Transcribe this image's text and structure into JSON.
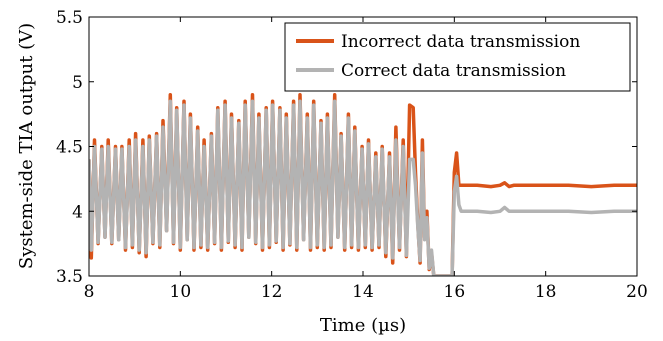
{
  "chart_data": {
    "type": "line",
    "xlabel": "Time (µs)",
    "ylabel": "System-side TIA output (V)",
    "xlim": [
      8,
      20
    ],
    "ylim": [
      3.5,
      5.5
    ],
    "xticks": [
      8,
      10,
      12,
      14,
      16,
      18,
      20
    ],
    "yticks": [
      3.5,
      4,
      4.5,
      5,
      5.5
    ],
    "xtick_labels": [
      "8",
      "10",
      "12",
      "14",
      "16",
      "18",
      "20"
    ],
    "ytick_labels": [
      "3.5",
      "4",
      "4.5",
      "5",
      "5.5"
    ],
    "legend_position": "top-right",
    "grid": false,
    "series": [
      {
        "name": "Incorrect data transmission",
        "color": "#d95319",
        "x": [
          8.0,
          8.05,
          8.12,
          8.2,
          8.28,
          8.35,
          8.42,
          8.5,
          8.58,
          8.65,
          8.72,
          8.8,
          8.88,
          8.95,
          9.02,
          9.1,
          9.18,
          9.25,
          9.32,
          9.4,
          9.48,
          9.55,
          9.62,
          9.7,
          9.78,
          9.85,
          9.92,
          10.0,
          10.08,
          10.15,
          10.22,
          10.3,
          10.38,
          10.45,
          10.52,
          10.6,
          10.68,
          10.75,
          10.82,
          10.9,
          10.98,
          11.05,
          11.12,
          11.2,
          11.28,
          11.35,
          11.42,
          11.5,
          11.58,
          11.65,
          11.72,
          11.8,
          11.88,
          11.95,
          12.02,
          12.1,
          12.18,
          12.25,
          12.32,
          12.4,
          12.48,
          12.55,
          12.62,
          12.7,
          12.78,
          12.85,
          12.92,
          13.0,
          13.08,
          13.15,
          13.22,
          13.3,
          13.38,
          13.45,
          13.52,
          13.6,
          13.68,
          13.75,
          13.82,
          13.9,
          13.98,
          14.05,
          14.12,
          14.2,
          14.28,
          14.35,
          14.42,
          14.5,
          14.58,
          14.65,
          14.72,
          14.8,
          14.88,
          14.95,
          15.02,
          15.1,
          15.15,
          15.2,
          15.25,
          15.3,
          15.35,
          15.4,
          15.45,
          15.5,
          15.55,
          15.6,
          15.65,
          15.7,
          15.8,
          15.9,
          15.95,
          16.0,
          16.05,
          16.1,
          16.15,
          16.2,
          16.3,
          16.5,
          16.8,
          17.0,
          17.1,
          17.2,
          17.3,
          17.5,
          17.8,
          18.0,
          18.5,
          19.0,
          19.5,
          19.8,
          20.0
        ],
        "y": [
          4.4,
          3.64,
          4.55,
          3.75,
          4.5,
          3.8,
          4.55,
          3.75,
          4.5,
          3.78,
          4.5,
          3.7,
          4.55,
          3.72,
          4.6,
          3.68,
          4.55,
          3.65,
          4.58,
          3.75,
          4.6,
          3.72,
          4.7,
          3.85,
          4.9,
          3.75,
          4.8,
          3.7,
          4.85,
          3.78,
          4.75,
          3.7,
          4.65,
          3.72,
          4.55,
          3.7,
          4.6,
          3.75,
          4.8,
          3.7,
          4.85,
          3.76,
          4.75,
          3.72,
          4.7,
          3.7,
          4.85,
          3.8,
          4.9,
          3.75,
          4.75,
          3.7,
          4.8,
          3.72,
          4.85,
          3.76,
          4.8,
          3.7,
          4.75,
          3.74,
          4.85,
          3.7,
          4.9,
          3.78,
          4.75,
          3.7,
          4.85,
          3.72,
          4.7,
          3.7,
          4.75,
          3.72,
          4.9,
          3.8,
          4.6,
          3.7,
          4.75,
          3.72,
          4.65,
          3.7,
          4.5,
          3.72,
          4.55,
          3.7,
          4.45,
          3.72,
          4.5,
          3.65,
          4.45,
          3.6,
          4.65,
          3.7,
          4.55,
          3.65,
          4.82,
          4.8,
          4.3,
          3.9,
          3.6,
          4.55,
          3.8,
          4.0,
          3.55,
          3.68,
          3.5,
          3.5,
          3.5,
          3.5,
          3.5,
          3.5,
          3.5,
          4.3,
          4.45,
          4.2,
          4.2,
          4.2,
          4.2,
          4.2,
          4.19,
          4.2,
          4.22,
          4.19,
          4.2,
          4.2,
          4.2,
          4.2,
          4.2,
          4.19,
          4.2,
          4.2,
          4.2
        ]
      },
      {
        "name": "Correct data transmission",
        "color": "#b3b3b3",
        "x": [
          8.0,
          8.05,
          8.12,
          8.2,
          8.28,
          8.35,
          8.42,
          8.5,
          8.58,
          8.65,
          8.72,
          8.8,
          8.88,
          8.95,
          9.02,
          9.1,
          9.18,
          9.25,
          9.32,
          9.4,
          9.48,
          9.55,
          9.62,
          9.7,
          9.78,
          9.85,
          9.92,
          10.0,
          10.08,
          10.15,
          10.22,
          10.3,
          10.38,
          10.45,
          10.52,
          10.6,
          10.68,
          10.75,
          10.82,
          10.9,
          10.98,
          11.05,
          11.12,
          11.2,
          11.28,
          11.35,
          11.42,
          11.5,
          11.58,
          11.65,
          11.72,
          11.8,
          11.88,
          11.95,
          12.02,
          12.1,
          12.18,
          12.25,
          12.32,
          12.4,
          12.48,
          12.55,
          12.62,
          12.7,
          12.78,
          12.85,
          12.92,
          13.0,
          13.08,
          13.15,
          13.22,
          13.3,
          13.38,
          13.45,
          13.52,
          13.6,
          13.68,
          13.75,
          13.82,
          13.9,
          13.98,
          14.05,
          14.12,
          14.2,
          14.28,
          14.35,
          14.42,
          14.5,
          14.58,
          14.65,
          14.72,
          14.8,
          14.88,
          14.95,
          15.02,
          15.1,
          15.15,
          15.2,
          15.25,
          15.3,
          15.35,
          15.4,
          15.45,
          15.5,
          15.55,
          15.6,
          15.65,
          15.7,
          15.8,
          15.9,
          15.95,
          16.0,
          16.05,
          16.1,
          16.15,
          16.2,
          16.3,
          16.5,
          16.8,
          17.0,
          17.1,
          17.2,
          17.3,
          17.5,
          17.8,
          18.0,
          18.5,
          19.0,
          19.5,
          19.8,
          20.0
        ],
        "y": [
          4.4,
          3.7,
          4.5,
          3.76,
          4.48,
          3.8,
          4.5,
          3.76,
          4.48,
          3.78,
          4.48,
          3.72,
          4.5,
          3.74,
          4.55,
          3.7,
          4.5,
          3.68,
          4.55,
          3.76,
          4.58,
          3.74,
          4.65,
          3.85,
          4.85,
          3.76,
          4.78,
          3.72,
          4.82,
          3.78,
          4.72,
          3.72,
          4.62,
          3.74,
          4.5,
          3.72,
          4.58,
          3.76,
          4.78,
          3.72,
          4.82,
          3.77,
          4.72,
          3.74,
          4.68,
          3.72,
          4.82,
          3.8,
          4.85,
          3.76,
          4.72,
          3.72,
          4.78,
          3.74,
          4.82,
          3.77,
          4.78,
          3.72,
          4.72,
          3.75,
          4.82,
          3.72,
          4.85,
          3.78,
          4.72,
          3.72,
          4.82,
          3.74,
          4.68,
          3.72,
          4.72,
          3.74,
          4.85,
          3.8,
          4.58,
          3.72,
          4.72,
          3.74,
          4.62,
          3.72,
          4.48,
          3.74,
          4.52,
          3.72,
          4.42,
          3.74,
          4.48,
          3.68,
          4.42,
          3.64,
          4.55,
          3.72,
          4.5,
          3.66,
          4.4,
          4.4,
          4.2,
          3.88,
          3.62,
          4.45,
          3.78,
          3.95,
          3.56,
          3.7,
          3.5,
          3.5,
          3.5,
          3.5,
          3.5,
          3.5,
          3.5,
          4.15,
          4.27,
          4.05,
          4.0,
          4.0,
          4.0,
          4.0,
          3.99,
          4.0,
          4.03,
          4.0,
          4.0,
          4.0,
          4.0,
          4.0,
          4.0,
          3.99,
          4.0,
          4.0,
          4.0
        ]
      }
    ]
  }
}
